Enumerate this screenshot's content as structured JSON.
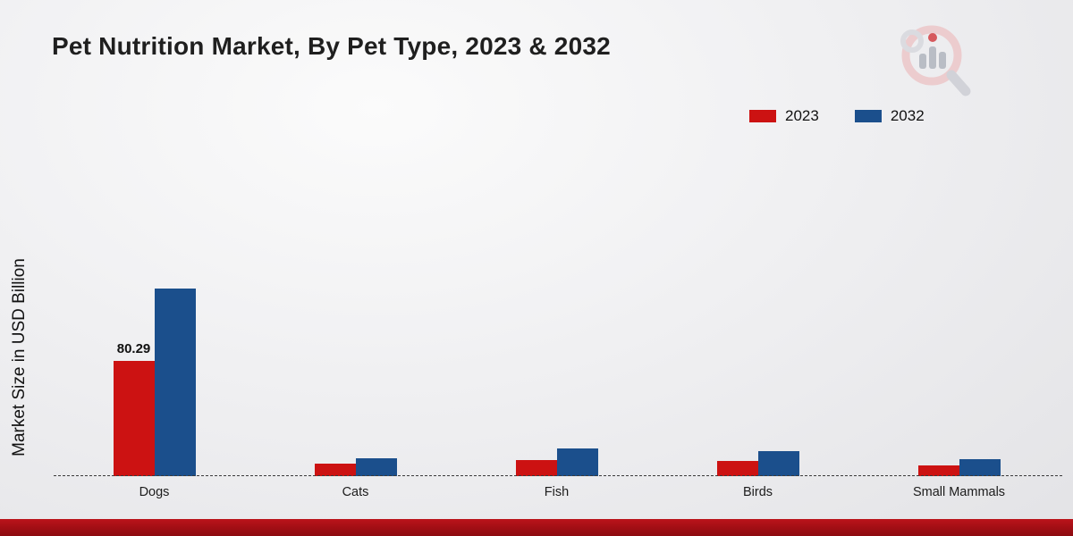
{
  "chart_data": {
    "type": "bar",
    "title": "Pet Nutrition Market, By Pet Type, 2023 & 2032",
    "xlabel": "",
    "ylabel": "Market Size in USD Billion",
    "categories": [
      "Dogs",
      "Cats",
      "Fish",
      "Birds",
      "Small Mammals"
    ],
    "series": [
      {
        "name": "2023",
        "color": "#cc1212",
        "values": [
          80.29,
          8.5,
          11,
          10.5,
          7.5
        ]
      },
      {
        "name": "2032",
        "color": "#1b4f8c",
        "values": [
          130.5,
          12.5,
          19,
          17.5,
          12
        ]
      }
    ],
    "annotations": [
      {
        "category_index": 0,
        "series_index": 0,
        "text": "80.29"
      }
    ],
    "ylim": [
      0,
      140
    ],
    "grid": false,
    "legend_position": "top-right",
    "baseline_style": "dashed"
  },
  "branding": {
    "logo_icon": "magnifier-bar-chart-logo",
    "accent_red": "#cc1212",
    "accent_blue": "#1b4f8c",
    "footer_color": "#a00e14"
  }
}
